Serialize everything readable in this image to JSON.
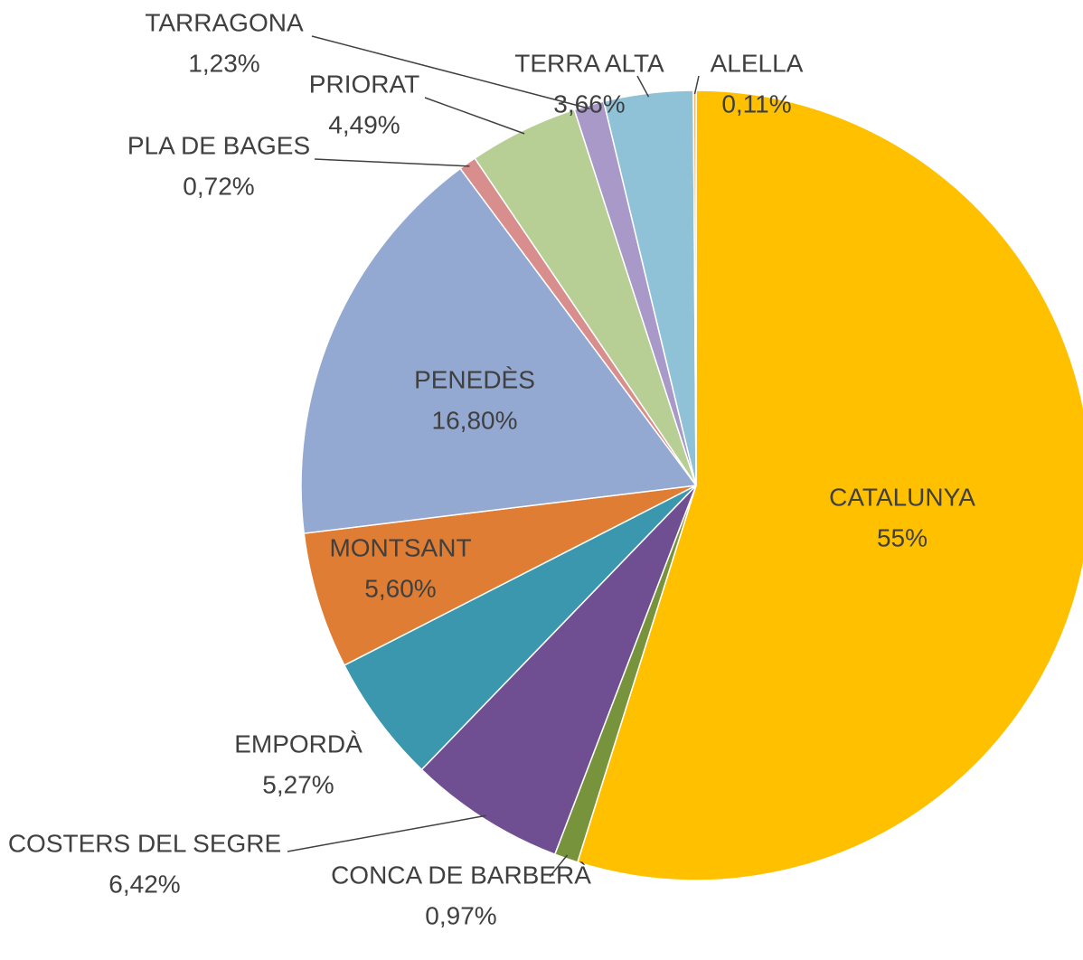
{
  "chart_data": {
    "type": "pie",
    "categories": [
      "CATALUNYA",
      "CONCA DE BARBERÀ",
      "COSTERS DEL SEGRE",
      "EMPORDÀ",
      "MONTSANT",
      "PENEDÈS",
      "PLA DE BAGES",
      "PRIORAT",
      "TARRAGONA",
      "TERRA ALTA",
      "ALELLA"
    ],
    "values": [
      55,
      0.97,
      6.42,
      5.27,
      5.6,
      16.8,
      0.72,
      4.49,
      1.23,
      3.66,
      0.11
    ],
    "value_labels": [
      "55%",
      "0,97%",
      "6,42%",
      "5,27%",
      "5,60%",
      "16,80%",
      "0,72%",
      "4,49%",
      "1,23%",
      "3,66%",
      "0,11%"
    ],
    "colors": [
      "#ffc000",
      "#77933c",
      "#6f4f91",
      "#3a97ae",
      "#de7d33",
      "#93a9d2",
      "#d88e8c",
      "#b7ce94",
      "#a899c8",
      "#8fc2d6",
      "#f6b26b"
    ]
  }
}
